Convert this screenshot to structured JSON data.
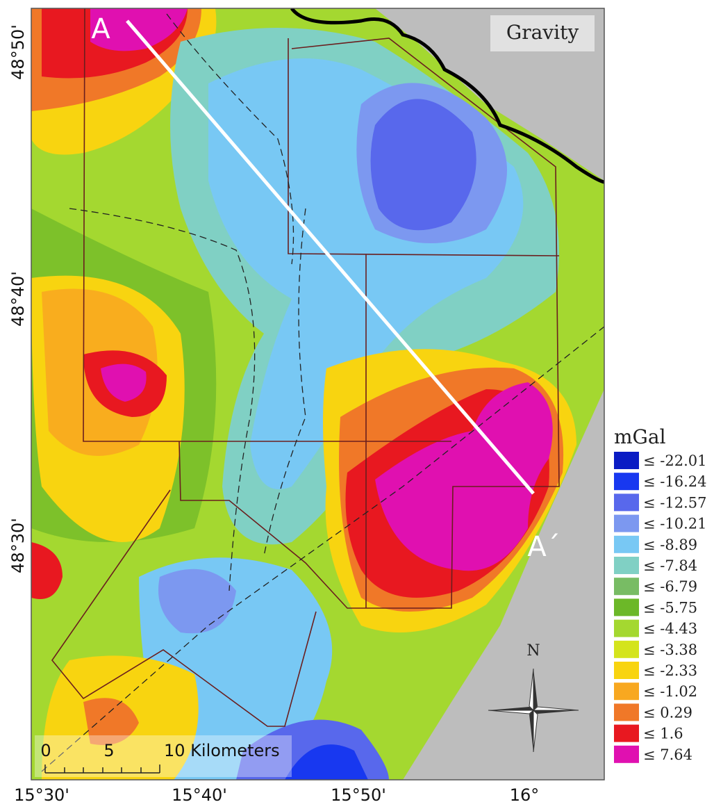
{
  "map": {
    "title": "Gravity",
    "profile_start": "A",
    "profile_end": "A´",
    "north": "N",
    "lat_labels": [
      "48°50'",
      "48°40'",
      "48°30'"
    ],
    "lon_labels": [
      "15°30'",
      "15°40'",
      "15°50'",
      "16°"
    ],
    "scale_bar": [
      "0",
      "5",
      "10 Kilometers"
    ],
    "legend": {
      "title": "mGal",
      "items": [
        {
          "label": "≤ -22.01",
          "color": "#0a1cc4"
        },
        {
          "label": "≤ -16.24",
          "color": "#1838f0"
        },
        {
          "label": "≤ -12.57",
          "color": "#5868ec"
        },
        {
          "label": "≤ -10.21",
          "color": "#7c98f0"
        },
        {
          "label": "≤ -8.89",
          "color": "#78c8f4"
        },
        {
          "label": "≤ -7.84",
          "color": "#80d0c4"
        },
        {
          "label": "≤ -6.79",
          "color": "#78bc64"
        },
        {
          "label": "≤ -5.75",
          "color": "#6cb828"
        },
        {
          "label": "≤ -4.43",
          "color": "#a4d830"
        },
        {
          "label": "≤ -3.38",
          "color": "#d4e41c"
        },
        {
          "label": "≤ -2.33",
          "color": "#f8d410"
        },
        {
          "label": "≤ -1.02",
          "color": "#f8a820"
        },
        {
          "label": "≤ 0.29",
          "color": "#f07828"
        },
        {
          "label": "≤ 1.6",
          "color": "#e81820"
        },
        {
          "label": "≤ 7.64",
          "color": "#e010b0"
        }
      ]
    }
  }
}
